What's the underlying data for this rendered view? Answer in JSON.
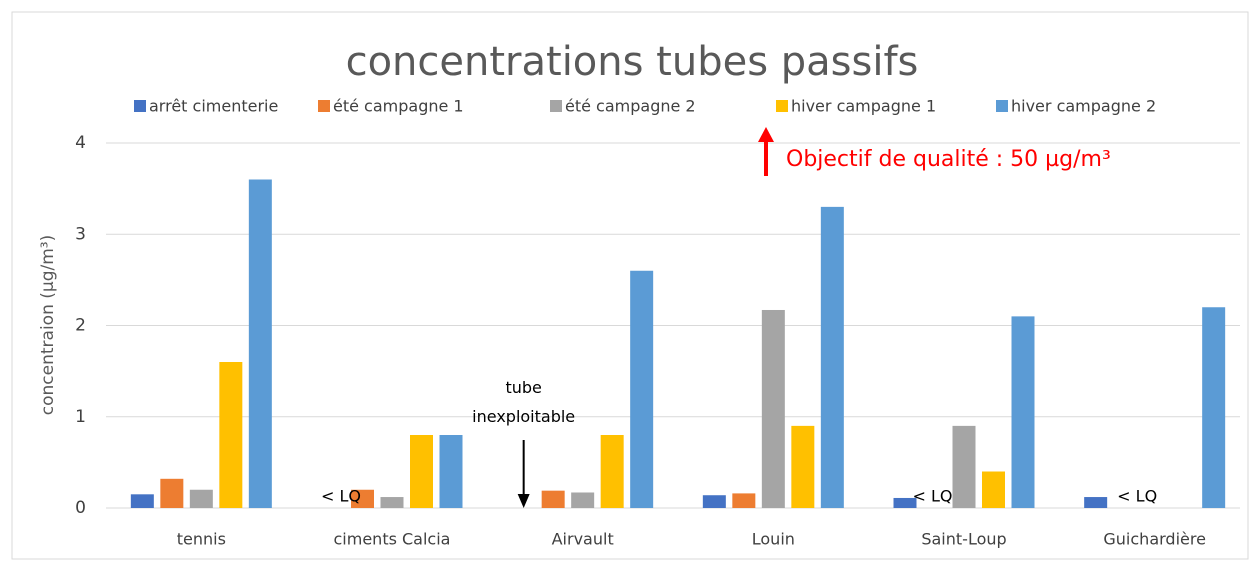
{
  "chart_data": {
    "type": "bar",
    "title": "concentrations tubes passifs",
    "y_label": "concentraion (µg/m³)",
    "categories": [
      "tennis",
      "ciments Calcia",
      "Airvault",
      "Louin",
      "Saint-Loup",
      "Guichardière"
    ],
    "series": [
      {
        "name": "arrêt cimenterie",
        "color": "#4472c4",
        "values": [
          0.15,
          null,
          null,
          0.14,
          0.11,
          0.12
        ]
      },
      {
        "name": "été campagne 1",
        "color": "#ed7d31",
        "values": [
          0.32,
          0.2,
          0.19,
          0.16,
          null,
          null
        ]
      },
      {
        "name": "été campagne 2",
        "color": "#a5a5a5",
        "values": [
          0.2,
          0.12,
          0.17,
          2.17,
          0.9,
          null
        ]
      },
      {
        "name": "hiver campagne 1",
        "color": "#ffc000",
        "values": [
          1.6,
          0.8,
          0.8,
          0.9,
          0.4,
          null
        ]
      },
      {
        "name": "hiver campagne 2",
        "color": "#5b9bd5",
        "values": [
          3.6,
          0.8,
          2.6,
          3.3,
          2.1,
          2.2
        ]
      }
    ],
    "ylim": [
      0,
      4
    ],
    "yticks": [
      0,
      1,
      2,
      3,
      4
    ],
    "grid": true,
    "legend": "top",
    "annotations": [
      "< LQ",
      "tube\ninexploitable",
      "< LQ",
      "< LQ",
      "Objectif de qualité : 50 µg/m³"
    ]
  }
}
